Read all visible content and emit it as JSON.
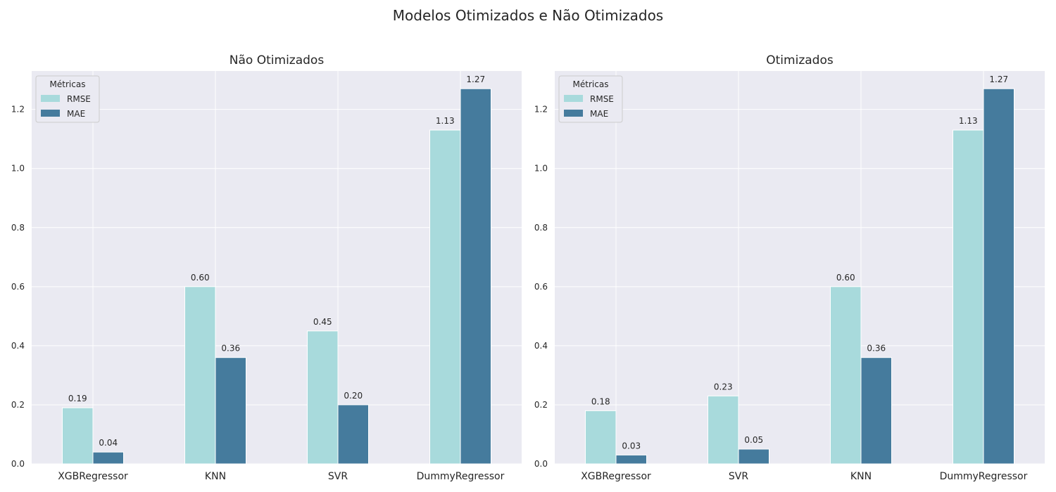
{
  "figure": {
    "title": "Modelos Otimizados e Não Otimizados"
  },
  "colors": {
    "rmse": "#a8dadc",
    "mae": "#457b9d",
    "panel_bg": "#eaeaf2",
    "grid": "#ffffff",
    "text": "#262626"
  },
  "chart_data": [
    {
      "type": "bar",
      "title": "Não Otimizados",
      "xlabel": "",
      "ylabel": "",
      "categories": [
        "XGBRegressor",
        "KNN",
        "SVR",
        "DummyRegressor"
      ],
      "series": [
        {
          "name": "RMSE",
          "values": [
            0.19,
            0.6,
            0.45,
            1.13
          ],
          "labels": [
            "0.19",
            "0.60",
            "0.45",
            "1.13"
          ]
        },
        {
          "name": "MAE",
          "values": [
            0.04,
            0.36,
            0.2,
            1.27
          ],
          "labels": [
            "0.04",
            "0.36",
            "0.20",
            "1.27"
          ]
        }
      ],
      "ylim": [
        0,
        1.33
      ],
      "yticks": [
        "0.0",
        "0.2",
        "0.4",
        "0.6",
        "0.8",
        "1.0",
        "1.2"
      ],
      "grid": true,
      "legend": {
        "title": "Métricas",
        "placement": "top-left"
      }
    },
    {
      "type": "bar",
      "title": "Otimizados",
      "xlabel": "",
      "ylabel": "",
      "categories": [
        "XGBRegressor",
        "SVR",
        "KNN",
        "DummyRegressor"
      ],
      "series": [
        {
          "name": "RMSE",
          "values": [
            0.18,
            0.23,
            0.6,
            1.13
          ],
          "labels": [
            "0.18",
            "0.23",
            "0.60",
            "1.13"
          ]
        },
        {
          "name": "MAE",
          "values": [
            0.03,
            0.05,
            0.36,
            1.27
          ],
          "labels": [
            "0.03",
            "0.05",
            "0.36",
            "1.27"
          ]
        }
      ],
      "ylim": [
        0,
        1.33
      ],
      "yticks": [
        "0.0",
        "0.2",
        "0.4",
        "0.6",
        "0.8",
        "1.0",
        "1.2"
      ],
      "grid": true,
      "legend": {
        "title": "Métricas",
        "placement": "top-left"
      }
    }
  ]
}
